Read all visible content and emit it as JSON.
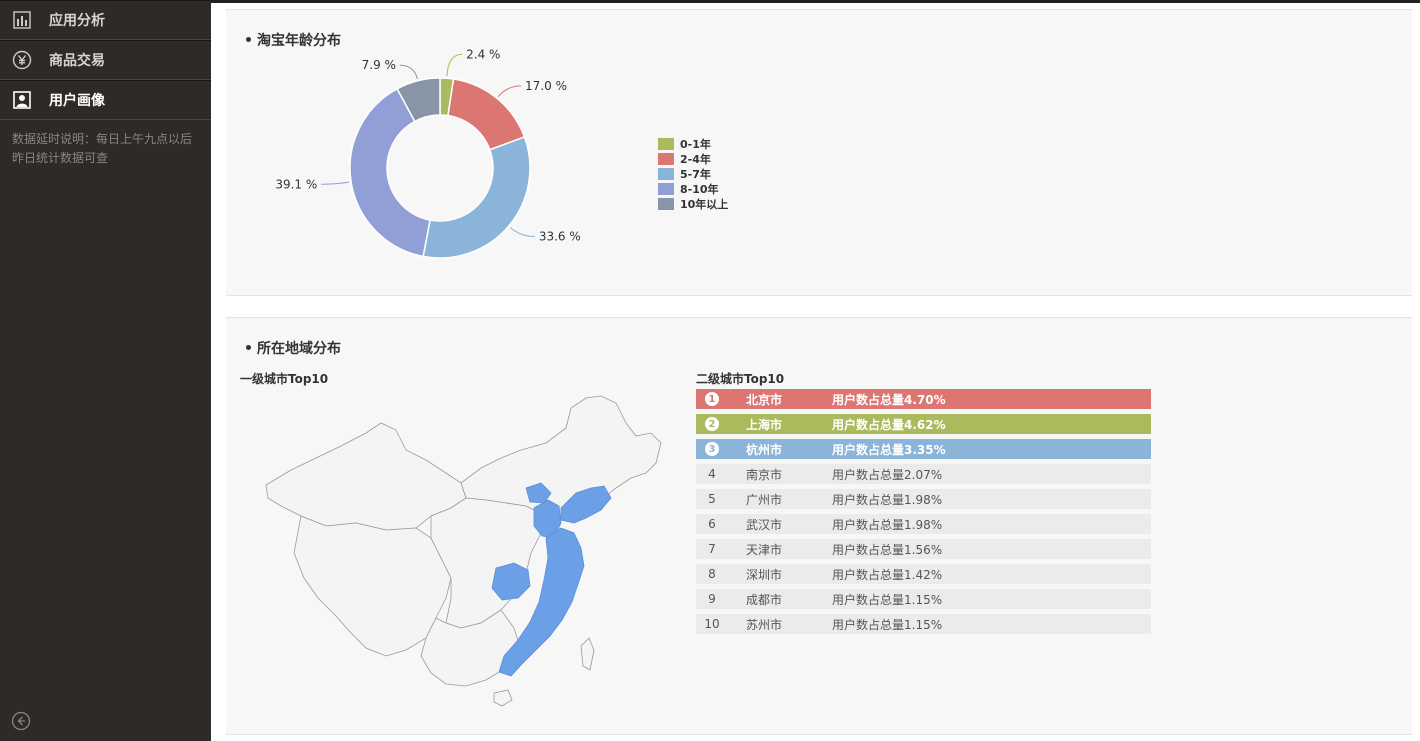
{
  "sidebar": {
    "items": [
      {
        "label": "应用分析",
        "icon": "bar-chart-icon",
        "active": false
      },
      {
        "label": "商品交易",
        "icon": "yen-coin-icon",
        "active": false
      },
      {
        "label": "用户画像",
        "icon": "user-portrait-icon",
        "active": true
      }
    ],
    "note": "数据延时说明：每日上午九点以后昨日统计数据可查",
    "collapse_icon": "arrow-left-circle-icon"
  },
  "age_panel": {
    "title": "淘宝年龄分布",
    "chart_data": {
      "type": "pie",
      "donut": true,
      "title": "淘宝年龄分布",
      "legend_position": "right",
      "slices": [
        {
          "label": "0-1年",
          "value": 2.4,
          "display": "2.4 %",
          "color": "#a9bb5d"
        },
        {
          "label": "2-4年",
          "value": 17.0,
          "display": "17.0 %",
          "color": "#dc7672"
        },
        {
          "label": "5-7年",
          "value": 33.6,
          "display": "33.6 %",
          "color": "#8ab4d8"
        },
        {
          "label": "8-10年",
          "value": 39.1,
          "display": "39.1 %",
          "color": "#929fd6"
        },
        {
          "label": "10年以上",
          "value": 7.9,
          "display": "7.9 %",
          "color": "#8895a6"
        }
      ]
    }
  },
  "region_panel": {
    "title": "所在地域分布",
    "map_label": "一级城市Top10",
    "list_label": "二级城市Top10",
    "highlight_color": "#6b9fe6",
    "rows": [
      {
        "rank": "1",
        "city": "北京市",
        "share": "用户数占总量4.70%",
        "color": "#dc7672"
      },
      {
        "rank": "2",
        "city": "上海市",
        "share": "用户数占总量4.62%",
        "color": "#a9bb5d"
      },
      {
        "rank": "3",
        "city": "杭州市",
        "share": "用户数占总量3.35%",
        "color": "#8ab4d8"
      },
      {
        "rank": "4",
        "city": "南京市",
        "share": "用户数占总量2.07%",
        "color": ""
      },
      {
        "rank": "5",
        "city": "广州市",
        "share": "用户数占总量1.98%",
        "color": ""
      },
      {
        "rank": "6",
        "city": "武汉市",
        "share": "用户数占总量1.98%",
        "color": ""
      },
      {
        "rank": "7",
        "city": "天津市",
        "share": "用户数占总量1.56%",
        "color": ""
      },
      {
        "rank": "8",
        "city": "深圳市",
        "share": "用户数占总量1.42%",
        "color": ""
      },
      {
        "rank": "9",
        "city": "成都市",
        "share": "用户数占总量1.15%",
        "color": ""
      },
      {
        "rank": "10",
        "city": "苏州市",
        "share": "用户数占总量1.15%",
        "color": ""
      }
    ]
  }
}
